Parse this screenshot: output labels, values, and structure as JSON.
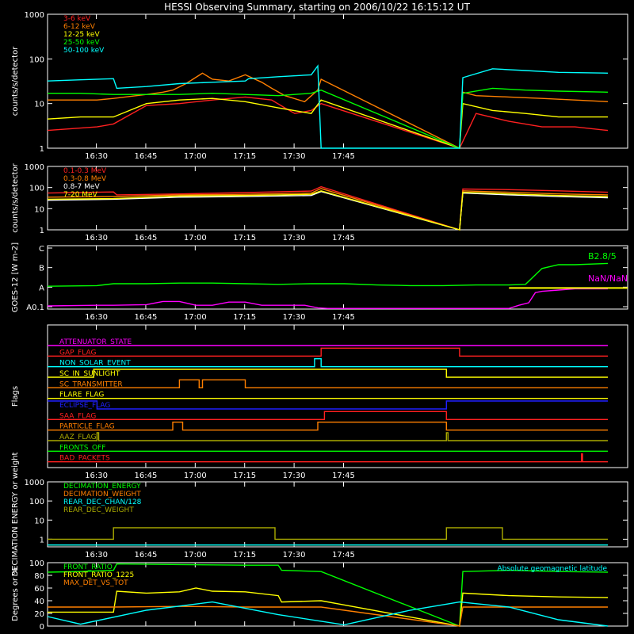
{
  "title": "HESSI Observing Summary, starting on 2006/10/22 16:15:12 UT",
  "time_ticks": [
    "16:30",
    "16:45",
    "17:00",
    "17:15",
    "17:30",
    "17:45"
  ],
  "chart_data": [
    {
      "type": "line",
      "id": "lo_energy",
      "ylabel": "counts/s/detector",
      "yscale": "log",
      "ylim": [
        1,
        1000
      ],
      "yticks": [
        "1",
        "10",
        "100",
        "1000"
      ],
      "x_unit": "minutes after 16:15:12 UT",
      "gaps": [
        [
          83,
          125
        ]
      ],
      "series": [
        {
          "name": "3-6 keV",
          "color": "#ff2020",
          "x": [
            0,
            15,
            20,
            30,
            40,
            50,
            60,
            68,
            72,
            75,
            80,
            83,
            125,
            130,
            140,
            150,
            160,
            170
          ],
          "y": [
            2.5,
            3,
            3.5,
            9,
            10,
            12,
            14,
            12,
            8,
            6,
            7,
            10,
            1,
            6,
            4,
            3,
            3,
            2.5
          ]
        },
        {
          "name": "6-12 keV",
          "color": "#ff7f00",
          "x": [
            0,
            15,
            20,
            30,
            35,
            38,
            42,
            47,
            50,
            55,
            60,
            65,
            68,
            72,
            78,
            82,
            83,
            125,
            126,
            130,
            140,
            150,
            160,
            170
          ],
          "y": [
            12,
            12,
            13,
            16,
            18,
            20,
            28,
            48,
            35,
            32,
            44,
            30,
            22,
            15,
            11,
            20,
            35,
            1,
            18,
            15,
            14,
            13,
            12,
            11
          ]
        },
        {
          "name": "12-25 keV",
          "color": "#ffff00",
          "x": [
            0,
            10,
            20,
            30,
            40,
            50,
            60,
            70,
            80,
            83,
            125,
            126,
            135,
            145,
            155,
            170
          ],
          "y": [
            4.5,
            5,
            5,
            10,
            12,
            13,
            11,
            8,
            6,
            12,
            1,
            10,
            7,
            6,
            5,
            5
          ]
        },
        {
          "name": "25-50 keV",
          "color": "#00ff00",
          "x": [
            0,
            10,
            20,
            30,
            40,
            50,
            60,
            70,
            80,
            83,
            125,
            126,
            135,
            145,
            155,
            170
          ],
          "y": [
            17,
            17,
            16,
            16,
            16,
            17,
            16,
            15,
            17,
            20,
            1,
            17,
            22,
            20,
            19,
            18
          ]
        },
        {
          "name": "50-100 keV",
          "color": "#00ffff",
          "x": [
            0,
            10,
            20,
            21,
            30,
            40,
            50,
            60,
            61,
            70,
            80,
            82,
            83,
            125,
            126,
            135,
            145,
            155,
            170
          ],
          "y": [
            32,
            34,
            36,
            22,
            24,
            28,
            30,
            32,
            36,
            40,
            44,
            70,
            1,
            1,
            38,
            60,
            55,
            50,
            48
          ]
        }
      ]
    },
    {
      "type": "line",
      "id": "hi_energy",
      "ylabel": "counts/s/detector",
      "yscale": "log",
      "ylim": [
        1,
        1000
      ],
      "yticks": [
        "1",
        "10",
        "100",
        "1000"
      ],
      "x_unit": "minutes after 16:15:12 UT",
      "gaps": [
        [
          83,
          125
        ]
      ],
      "series": [
        {
          "name": "0.1-0.3 MeV",
          "color": "#ff2020",
          "x": [
            0,
            20,
            21,
            40,
            60,
            80,
            83,
            125,
            126,
            140,
            155,
            170
          ],
          "y": [
            55,
            62,
            45,
            50,
            58,
            68,
            110,
            1,
            85,
            80,
            70,
            60
          ]
        },
        {
          "name": "0.3-0.8 MeV",
          "color": "#ff7f00",
          "x": [
            0,
            20,
            40,
            60,
            80,
            83,
            125,
            126,
            140,
            155,
            170
          ],
          "y": [
            35,
            38,
            45,
            48,
            55,
            90,
            1,
            70,
            60,
            50,
            45
          ]
        },
        {
          "name": "0.8-7 MeV",
          "color": "#ffffff",
          "x": [
            0,
            20,
            40,
            60,
            80,
            83,
            125,
            126,
            140,
            155,
            170
          ],
          "y": [
            25,
            28,
            35,
            38,
            42,
            65,
            1,
            55,
            45,
            38,
            33
          ]
        },
        {
          "name": "7-20 MeV",
          "color": "#ffff00",
          "x": [
            0,
            20,
            40,
            60,
            80,
            83,
            125,
            126,
            140,
            155,
            170
          ],
          "y": [
            28,
            30,
            40,
            42,
            48,
            70,
            1,
            60,
            50,
            42,
            38
          ]
        }
      ]
    },
    {
      "type": "line",
      "id": "goes",
      "ylabel": "GOES-12 [W m-2]",
      "yscale": "linear",
      "ylim": [
        0,
        5
      ],
      "yticks": [
        "A0.1",
        "A",
        "B",
        "C"
      ],
      "x_unit": "minutes after 16:15:12 UT",
      "series": [
        {
          "name": "B2.8/5",
          "color": "#00ff00",
          "x": [
            0,
            15,
            20,
            30,
            40,
            50,
            60,
            70,
            80,
            90,
            100,
            110,
            120,
            130,
            140,
            145,
            150,
            155,
            160,
            170
          ],
          "y": [
            1.8,
            1.85,
            2.0,
            2.0,
            2.05,
            2.05,
            2.0,
            1.95,
            2.0,
            2.0,
            1.9,
            1.85,
            1.85,
            1.9,
            1.9,
            1.95,
            3.2,
            3.5,
            3.5,
            3.6
          ]
        },
        {
          "name": "NaN/NaN",
          "color": "#ff00ff",
          "x": [
            0,
            15,
            20,
            30,
            35,
            40,
            45,
            50,
            55,
            60,
            65,
            70,
            78,
            82,
            85,
            100,
            125,
            140,
            143,
            146,
            148,
            150,
            155,
            160,
            170
          ],
          "y": [
            0.25,
            0.3,
            0.3,
            0.35,
            0.6,
            0.6,
            0.3,
            0.3,
            0.55,
            0.55,
            0.3,
            0.3,
            0.3,
            0.1,
            0.05,
            0.05,
            0.05,
            0.05,
            0.3,
            0.5,
            1.3,
            1.4,
            1.5,
            1.6,
            1.6
          ]
        }
      ]
    },
    {
      "type": "line",
      "id": "flags",
      "ylabel": "Flags",
      "x_unit": "minutes after 16:15:12 UT",
      "series": [
        {
          "name": "ATTENUATOR_STATE",
          "color": "#ff00ff",
          "x": [
            0,
            170
          ],
          "y": [
            0,
            0
          ]
        },
        {
          "name": "GAP_FLAG",
          "color": "#ff2020",
          "x": [
            0,
            83,
            83,
            125,
            125,
            170
          ],
          "y": [
            0,
            0,
            1,
            1,
            0,
            0
          ]
        },
        {
          "name": "NON_SOLAR_EVENT",
          "color": "#00ffff",
          "x": [
            0,
            81,
            81,
            83,
            83,
            170
          ],
          "y": [
            0,
            0,
            1,
            1,
            0,
            0
          ]
        },
        {
          "name": "SC_IN_SUNLIGHT",
          "color": "#ffff00",
          "x": [
            0,
            14,
            14,
            121,
            121,
            170
          ],
          "y": [
            0,
            0,
            1,
            1,
            0,
            0
          ]
        },
        {
          "name": "SC_TRANSMITTER",
          "color": "#ff7f00",
          "x": [
            0,
            40,
            40,
            46,
            46,
            47,
            47,
            60,
            60,
            170
          ],
          "y": [
            0,
            0,
            1,
            1,
            0,
            0,
            1,
            1,
            0,
            0
          ]
        },
        {
          "name": "FLARE_FLAG",
          "color": "#ffff00",
          "x": [
            0,
            170
          ],
          "y": [
            0,
            0
          ]
        },
        {
          "name": "ECLIPSE_FLAG",
          "color": "#2020ff",
          "x": [
            0,
            15,
            15,
            121,
            121,
            170
          ],
          "y": [
            1,
            1,
            0,
            0,
            1,
            1
          ]
        },
        {
          "name": "SAA_FLAG",
          "color": "#ff2020",
          "x": [
            0,
            84,
            84,
            121,
            121,
            170
          ],
          "y": [
            0,
            0,
            1,
            1,
            0,
            0
          ]
        },
        {
          "name": "PARTICLE_FLAG",
          "color": "#ff7f00",
          "x": [
            0,
            38,
            38,
            41,
            41,
            82,
            82,
            121,
            121,
            170
          ],
          "y": [
            0,
            0,
            1,
            1,
            0,
            0,
            1,
            1,
            0,
            0
          ]
        },
        {
          "name": "AAZ_FLAG",
          "color": "#aaaa00",
          "x": [
            0,
            15,
            15,
            15.5,
            15.5,
            121,
            121,
            121.5,
            121.5,
            170
          ],
          "y": [
            0,
            0,
            1,
            1,
            0,
            0,
            1,
            1,
            0,
            0
          ]
        },
        {
          "name": "FRONTS_OFF",
          "color": "#00ff00",
          "x": [
            0,
            170
          ],
          "y": [
            0,
            0
          ]
        },
        {
          "name": "BAD_PACKETS",
          "color": "#ff2020",
          "x": [
            0,
            162,
            162,
            162.3,
            162.3,
            170
          ],
          "y": [
            0,
            0,
            1,
            1,
            0,
            0
          ]
        }
      ]
    },
    {
      "type": "line",
      "id": "decimation",
      "ylabel": "DECIMATION ENERGY or weight",
      "yscale": "log",
      "ylim": [
        0.4,
        1000
      ],
      "yticks": [
        "1",
        "10",
        "100",
        "1000"
      ],
      "x_unit": "minutes after 16:15:12 UT",
      "series": [
        {
          "name": "DECIMATION_ENERGY",
          "color": "#00ff00",
          "x": [
            0,
            170
          ],
          "y": [
            0.5,
            0.5
          ]
        },
        {
          "name": "DECIMATION_WEIGHT",
          "color": "#ff7f00",
          "x": [
            0,
            170
          ],
          "y": [
            0.5,
            0.5
          ]
        },
        {
          "name": "REAR_DEC_CHAN/128",
          "color": "#00ffff",
          "x": [
            0,
            170
          ],
          "y": [
            0.5,
            0.5
          ]
        },
        {
          "name": "REAR_DEC_WEIGHT",
          "color": "#aaaa00",
          "x": [
            0,
            20,
            20,
            69,
            69,
            121,
            121,
            138,
            138,
            170
          ],
          "y": [
            1,
            1,
            4,
            4,
            1,
            1,
            4,
            4,
            1,
            1
          ]
        }
      ]
    },
    {
      "type": "line",
      "id": "ratios",
      "ylabel": "Degrees or %",
      "yscale": "linear",
      "ylim": [
        0,
        100
      ],
      "yticks": [
        "0",
        "20",
        "40",
        "60",
        "80",
        "100"
      ],
      "x_unit": "minutes after 16:15:12 UT",
      "series": [
        {
          "name": "FRONT_RATIO",
          "color": "#00ff00",
          "x": [
            0,
            10,
            20,
            21,
            40,
            60,
            70,
            71,
            83,
            125,
            126,
            140,
            155,
            170
          ],
          "y": [
            85,
            86,
            88,
            98,
            97,
            96,
            96,
            88,
            86,
            0,
            86,
            88,
            86,
            85
          ]
        },
        {
          "name": "FRONT_RATIO_1225",
          "color": "#ffff00",
          "x": [
            0,
            20,
            21,
            30,
            40,
            45,
            50,
            60,
            70,
            71,
            83,
            125,
            126,
            140,
            155,
            170
          ],
          "y": [
            22,
            22,
            55,
            52,
            54,
            60,
            55,
            54,
            48,
            38,
            40,
            0,
            52,
            48,
            46,
            45
          ]
        },
        {
          "name": "MAX_DET_VS_TOT",
          "color": "#ff7f00",
          "x": [
            0,
            20,
            40,
            60,
            83,
            125,
            126,
            140,
            155,
            170
          ],
          "y": [
            30,
            30,
            31,
            30,
            30,
            0,
            30,
            30,
            30,
            30
          ]
        },
        {
          "name": "Absolute geomagnetic latitude",
          "color": "#00ffff",
          "x": [
            0,
            10,
            30,
            50,
            70,
            90,
            110,
            125,
            140,
            155,
            170
          ],
          "y": [
            15,
            3,
            25,
            38,
            18,
            2,
            25,
            38,
            30,
            10,
            0
          ]
        }
      ]
    }
  ]
}
